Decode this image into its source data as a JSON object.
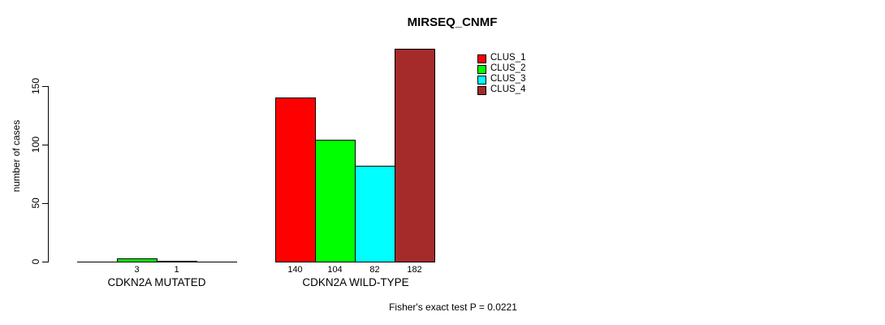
{
  "chart_data": {
    "type": "bar",
    "title": "MIRSEQ_CNMF",
    "ylabel": "number of cases",
    "xlabel": "",
    "ylim": [
      0,
      185
    ],
    "yticks": [
      0,
      50,
      100,
      150
    ],
    "grid": false,
    "legend_position": "upper-right-inside",
    "bar_border_color": "#000000",
    "series": [
      {
        "name": "CLUS_1",
        "color": "#ff0000"
      },
      {
        "name": "CLUS_2",
        "color": "#00ff00"
      },
      {
        "name": "CLUS_3",
        "color": "#00ffff"
      },
      {
        "name": "CLUS_4",
        "color": "#a52a2a"
      }
    ],
    "categories": [
      "CDKN2A MUTATED",
      "CDKN2A WILD-TYPE"
    ],
    "groups": [
      {
        "label": "CDKN2A MUTATED",
        "values": [
          0,
          3,
          1,
          0
        ]
      },
      {
        "label": "CDKN2A WILD-TYPE",
        "values": [
          140,
          104,
          82,
          182
        ]
      }
    ],
    "value_labels_rule": "shown only for non-zero bars",
    "annotation": "Fisher's exact test P = 0.0221"
  }
}
